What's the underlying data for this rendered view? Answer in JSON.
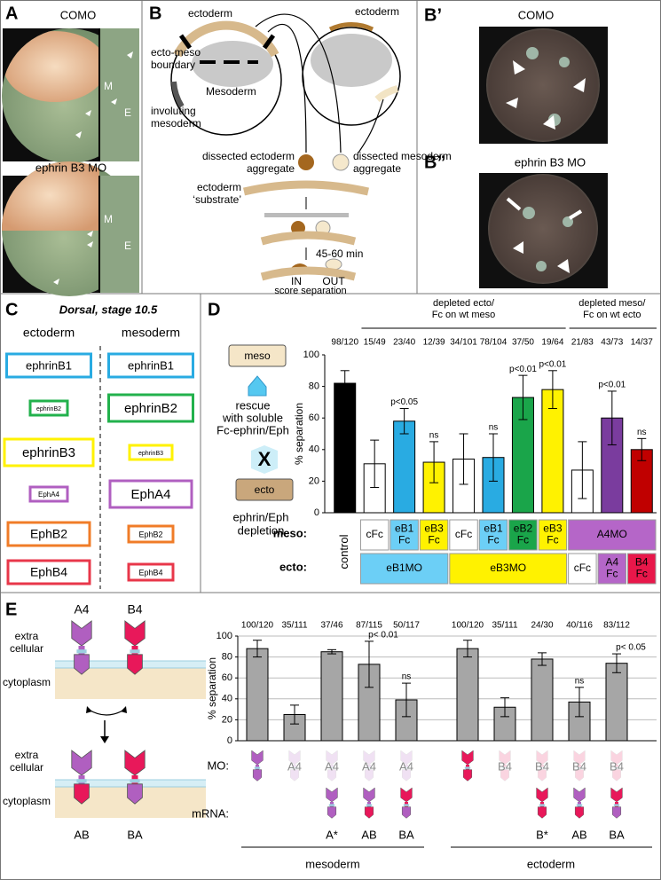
{
  "panel_a": {
    "letter": "A",
    "top_label": "COMO",
    "bottom_label": "ephrin B3 MO",
    "m_label": "M",
    "e_label": "E"
  },
  "panel_b": {
    "letter": "B",
    "ectoderm_left": "ectoderm",
    "boundary": [
      "ecto-meso",
      "boundary"
    ],
    "mesoderm": "Mesoderm",
    "involuting": [
      "involuting",
      "mesoderm"
    ],
    "ectoderm_right": "ectoderm",
    "dissected_ecto": [
      "dissected ectoderm",
      "aggregate"
    ],
    "dissected_meso": [
      "dissected mesoderm",
      "aggregate"
    ],
    "substrate": [
      "ectoderm",
      "‘substrate’"
    ],
    "time": "45-60 min",
    "in": "IN",
    "out": "OUT",
    "score": "score separation"
  },
  "panel_b1": {
    "letter": "B’",
    "label": "COMO"
  },
  "panel_b2": {
    "letter": "B”",
    "label": "ephrin B3 MO"
  },
  "panel_c": {
    "letter": "C",
    "title": "Dorsal, stage 10.5",
    "ecto_header": "ectoderm",
    "meso_header": "mesoderm",
    "rows": [
      {
        "ecto": "ephrinB1",
        "meso": "ephrinB1",
        "color": "#29abe2"
      },
      {
        "ecto": "ephrinB2",
        "meso": "ephrinB2",
        "color": "#22b14c"
      },
      {
        "ecto": "ephrinB3",
        "meso": "ephrinB3",
        "color": "#fff200"
      },
      {
        "ecto": "EphA4",
        "meso": "EphA4",
        "color": "#b05fc0"
      },
      {
        "ecto": "EphB2",
        "meso": "EphB2",
        "color": "#f07c28"
      },
      {
        "ecto": "EphB4",
        "meso": "EphB4",
        "color": "#e8374a"
      }
    ]
  },
  "chart_data": [
    {
      "type": "bar",
      "letter": "D",
      "y_label": "% separation",
      "ylim": [
        0,
        100
      ],
      "yticks": [
        0,
        20,
        40,
        60,
        80,
        100
      ],
      "grid": false,
      "values": [
        82,
        31,
        58,
        32,
        34,
        35,
        73,
        78,
        27,
        60,
        40
      ],
      "errors": [
        8,
        15,
        8,
        13,
        16,
        15,
        14,
        12,
        18,
        17,
        7
      ],
      "colors": [
        "#000000",
        "#ffffff",
        "#29abe2",
        "#fff200",
        "#ffffff",
        "#29abe2",
        "#1aa54a",
        "#fff200",
        "#ffffff",
        "#7a3c9e",
        "#c00000"
      ],
      "counts": [
        "98/120",
        "15/49",
        "23/40",
        "12/39",
        "34/101",
        "78/104",
        "37/50",
        "19/64",
        "21/83",
        "43/73",
        "14/37"
      ],
      "annotations": [
        null,
        null,
        "p<0.05",
        "ns",
        null,
        "ns",
        "p<0.01",
        "p<0.01",
        null,
        "p<0.01",
        "ns"
      ],
      "groups": [
        [
          "depleted ecto/",
          "Fc on wt meso"
        ],
        [
          "depleted meso/",
          "Fc on wt ecto"
        ]
      ],
      "row_labels": {
        "meso": "meso:",
        "ecto": "ecto:",
        "control": "control"
      },
      "meso_cells": [
        {
          "lines": [
            "cFc"
          ],
          "color": "#ffffff"
        },
        {
          "lines": [
            "eB1",
            "Fc"
          ],
          "color": "#6ccff6"
        },
        {
          "lines": [
            "eB3",
            "Fc"
          ],
          "color": "#fff200"
        },
        {
          "lines": [
            "cFc"
          ],
          "color": "#ffffff"
        },
        {
          "lines": [
            "eB1",
            "Fc"
          ],
          "color": "#6ccff6"
        },
        {
          "lines": [
            "eB2",
            "Fc"
          ],
          "color": "#1aa54a"
        },
        {
          "lines": [
            "eB3",
            "Fc"
          ],
          "color": "#fff200"
        },
        {
          "lines": [
            "A4MO"
          ],
          "color": "#b566c8"
        }
      ],
      "ecto_cells": [
        {
          "lines": [
            "eB1MO"
          ],
          "color": "#6ccff6"
        },
        {
          "lines": [
            "eB3MO"
          ],
          "color": "#fff200"
        },
        {
          "lines": [
            "cFc"
          ],
          "color": "#ffffff"
        },
        {
          "lines": [
            "A4",
            "Fc"
          ],
          "color": "#b566c8"
        },
        {
          "lines": [
            "B4",
            "Fc"
          ],
          "color": "#e8174a"
        }
      ],
      "diagram": {
        "meso": "meso",
        "rescue": [
          "rescue",
          "with soluble",
          "Fc-ephrin/Eph"
        ],
        "x": "X",
        "ecto": "ecto",
        "depletion": [
          "ephrin/Eph",
          "depletion"
        ]
      }
    },
    {
      "type": "bar",
      "letter": "E",
      "y_label": "% separation",
      "ylim": [
        0,
        100
      ],
      "yticks": [
        0,
        20,
        40,
        60,
        80,
        100
      ],
      "grid": true,
      "color": "#a6a6a6",
      "values": [
        88,
        25,
        85,
        73,
        39,
        88,
        32,
        78,
        37,
        74
      ],
      "errors": [
        8,
        9,
        2,
        22,
        16,
        8,
        9,
        6,
        14,
        9
      ],
      "counts": [
        "100/120",
        "35/111",
        "37/46",
        "87/115",
        "50/117",
        "100/120",
        "35/111",
        "24/30",
        "40/116",
        "83/112"
      ],
      "annotations": [
        null,
        null,
        null,
        "p< 0.01",
        "ns",
        null,
        null,
        null,
        "ns",
        "p< 0.05"
      ],
      "mo_label": "MO:",
      "mrna_label": "mRNA:",
      "mo_text": [
        null,
        "A4",
        "A4",
        "A4",
        "A4",
        null,
        "B4",
        "B4",
        "B4",
        "B4"
      ],
      "mrna_text": [
        null,
        null,
        "A*",
        "AB",
        "BA",
        null,
        null,
        "B*",
        "AB",
        "BA"
      ],
      "groups": [
        "mesoderm",
        "ectoderm"
      ],
      "diagram": {
        "a4": "A4",
        "b4": "B4",
        "extra": [
          "extra",
          "cellular"
        ],
        "cytoplasm": "cytoplasm",
        "ab": "AB",
        "ba": "BA"
      }
    }
  ]
}
